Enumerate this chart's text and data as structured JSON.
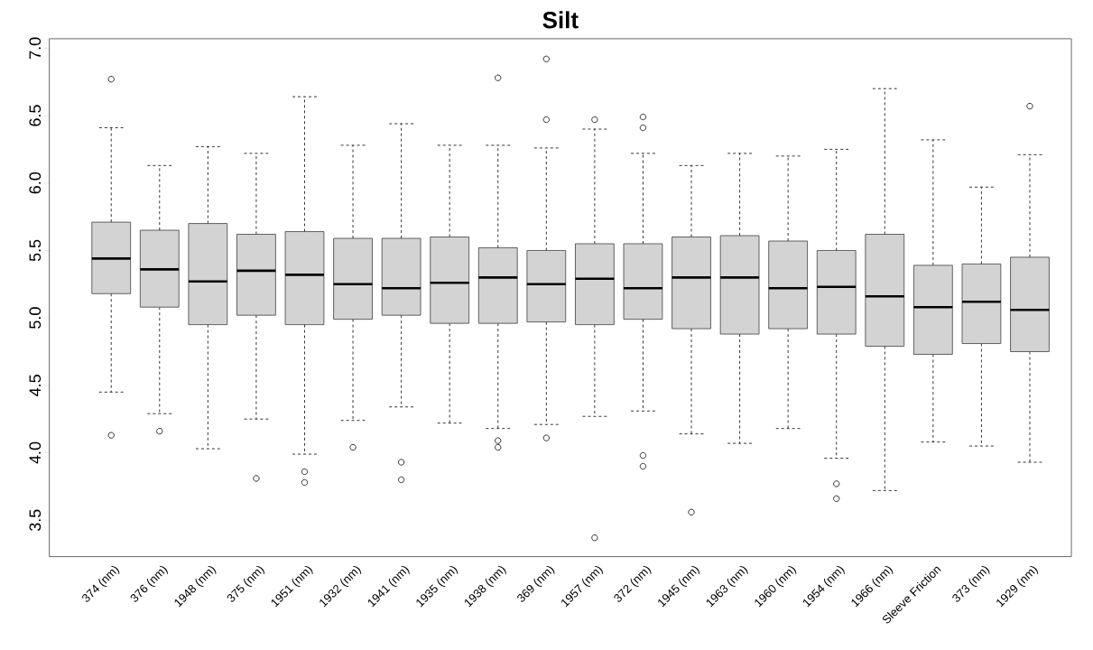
{
  "chart_data": {
    "type": "box",
    "title": "Silt",
    "categories": [
      "374 (nm)",
      "376 (nm)",
      "1948 (nm)",
      "375 (nm)",
      "1951 (nm)",
      "1932 (nm)",
      "1941 (nm)",
      "1935 (nm)",
      "1938 (nm)",
      "369 (nm)",
      "1957 (nm)",
      "372 (nm)",
      "1945 (nm)",
      "1963 (nm)",
      "1960 (nm)",
      "1954 (nm)",
      "1966 (nm)",
      "Sleeve Friction",
      "373 (nm)",
      "1929 (nm)"
    ],
    "color": "#d3d3d3",
    "boxes": [
      {
        "low": 4.45,
        "q1": 5.18,
        "median": 5.44,
        "q3": 5.71,
        "high": 6.41,
        "outliers": [
          6.77,
          4.13
        ]
      },
      {
        "low": 4.29,
        "q1": 5.08,
        "median": 5.36,
        "q3": 5.65,
        "high": 6.13,
        "outliers": [
          4.16
        ]
      },
      {
        "low": 4.03,
        "q1": 4.95,
        "median": 5.27,
        "q3": 5.7,
        "high": 6.27
      },
      {
        "low": 4.25,
        "q1": 5.02,
        "median": 5.35,
        "q3": 5.62,
        "high": 6.22,
        "outliers": [
          3.81
        ]
      },
      {
        "low": 3.99,
        "q1": 4.95,
        "median": 5.32,
        "q3": 5.64,
        "high": 6.64,
        "outliers": [
          3.86,
          3.78
        ]
      },
      {
        "low": 4.24,
        "q1": 4.99,
        "median": 5.25,
        "q3": 5.59,
        "high": 6.28,
        "outliers": [
          4.04
        ]
      },
      {
        "low": 4.34,
        "q1": 5.02,
        "median": 5.22,
        "q3": 5.59,
        "high": 6.44,
        "outliers": [
          3.93,
          3.8
        ]
      },
      {
        "low": 4.22,
        "q1": 4.96,
        "median": 5.26,
        "q3": 5.6,
        "high": 6.28
      },
      {
        "low": 4.18,
        "q1": 4.96,
        "median": 5.3,
        "q3": 5.52,
        "high": 6.28,
        "outliers": [
          6.78,
          4.09,
          4.04
        ]
      },
      {
        "low": 4.21,
        "q1": 4.97,
        "median": 5.25,
        "q3": 5.5,
        "high": 6.26,
        "outliers": [
          6.92,
          6.47,
          4.11
        ]
      },
      {
        "low": 4.27,
        "q1": 4.95,
        "median": 5.29,
        "q3": 5.55,
        "high": 6.4,
        "outliers": [
          6.47,
          3.37
        ]
      },
      {
        "low": 4.31,
        "q1": 4.99,
        "median": 5.22,
        "q3": 5.55,
        "high": 6.22,
        "outliers": [
          6.49,
          6.41,
          3.98,
          3.9
        ]
      },
      {
        "low": 4.14,
        "q1": 4.92,
        "median": 5.3,
        "q3": 5.6,
        "high": 6.13,
        "outliers": [
          3.56
        ]
      },
      {
        "low": 4.07,
        "q1": 4.88,
        "median": 5.3,
        "q3": 5.61,
        "high": 6.22
      },
      {
        "low": 4.18,
        "q1": 4.92,
        "median": 5.22,
        "q3": 5.57,
        "high": 6.2
      },
      {
        "low": 3.96,
        "q1": 4.88,
        "median": 5.23,
        "q3": 5.5,
        "high": 6.25,
        "outliers": [
          3.77,
          3.66
        ]
      },
      {
        "low": 3.72,
        "q1": 4.79,
        "median": 5.16,
        "q3": 5.62,
        "high": 6.7
      },
      {
        "low": 4.08,
        "q1": 4.73,
        "median": 5.08,
        "q3": 5.39,
        "high": 6.32
      },
      {
        "low": 4.05,
        "q1": 4.81,
        "median": 5.12,
        "q3": 5.4,
        "high": 5.97
      },
      {
        "low": 3.93,
        "q1": 4.75,
        "median": 5.06,
        "q3": 5.45,
        "high": 6.21,
        "outliers": [
          6.57
        ]
      }
    ],
    "ylim": [
      3.23,
      7.07
    ],
    "yticks": [
      3.5,
      {
        "value": 4,
        "label": "4.0"
      },
      4.5,
      {
        "value": 5,
        "label": "5.0"
      },
      5.5,
      {
        "value": 6,
        "label": "6.0"
      },
      6.5,
      {
        "value": 7,
        "label": "7.0"
      }
    ],
    "marker": "circle"
  }
}
